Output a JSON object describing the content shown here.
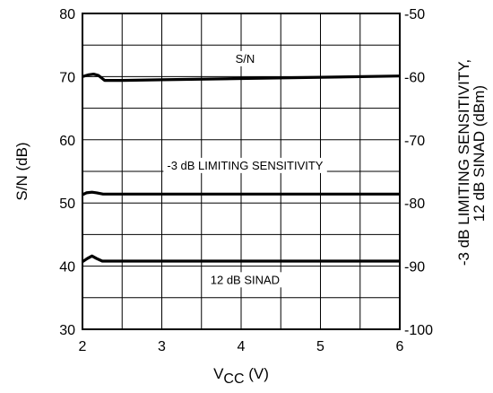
{
  "chart_data": {
    "type": "line",
    "xlabel_main": "V",
    "xlabel_sub": "CC",
    "xlabel_unit": " (V)",
    "ylabel_left": "S/N (dB)",
    "ylabel_right_line1": "-3 dB LIMITING SENSITIVITY,",
    "ylabel_right_line2": "12 dB SINAD (dBm)",
    "xlim": [
      2,
      6
    ],
    "ylim_left": [
      30,
      80
    ],
    "ylim_right": [
      -100,
      -50
    ],
    "x_ticks": [
      "2",
      "3",
      "4",
      "5",
      "6"
    ],
    "y_left_ticks": [
      "30",
      "40",
      "50",
      "60",
      "70",
      "80"
    ],
    "y_right_ticks": [
      "-100",
      "-90",
      "-80",
      "-70",
      "-60",
      "-50"
    ],
    "x_grid_step": 0.5,
    "y_grid_step": 5,
    "grid": true,
    "series": [
      {
        "name": "S/N",
        "axis": "left",
        "x": [
          2.0,
          2.08,
          2.14,
          2.2,
          2.28,
          2.5,
          3.0,
          4.0,
          5.0,
          6.0
        ],
        "y": [
          70.0,
          70.3,
          70.4,
          70.2,
          69.4,
          69.4,
          69.5,
          69.7,
          69.9,
          70.1
        ]
      },
      {
        "name": "-3 dB LIMITING SENSITIVITY",
        "axis": "right",
        "x": [
          2.0,
          2.05,
          2.12,
          2.18,
          2.26,
          2.5,
          3.0,
          4.0,
          5.0,
          6.0
        ],
        "y": [
          -78.7,
          -78.4,
          -78.3,
          -78.4,
          -78.6,
          -78.6,
          -78.6,
          -78.6,
          -78.6,
          -78.6
        ]
      },
      {
        "name": "12 dB SINAD",
        "axis": "right",
        "x": [
          2.0,
          2.06,
          2.12,
          2.18,
          2.25,
          2.5,
          3.0,
          4.0,
          5.0,
          6.0
        ],
        "y": [
          -89.3,
          -88.8,
          -88.4,
          -88.8,
          -89.2,
          -89.2,
          -89.2,
          -89.2,
          -89.2,
          -89.2
        ]
      }
    ],
    "annotations": [
      {
        "text": "S/N",
        "x": 4.05,
        "y": 72.2
      },
      {
        "text": "-3 dB LIMITING SENSITIVITY",
        "x": 4.05,
        "y": 55.3
      },
      {
        "text": "12 dB SINAD",
        "x": 4.05,
        "y": 37.2
      }
    ]
  }
}
